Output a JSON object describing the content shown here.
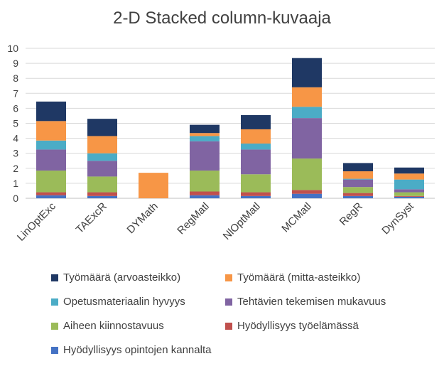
{
  "chart_data": {
    "type": "bar",
    "stacked": true,
    "title": "2-D Stacked column-kuvaaja",
    "xlabel": "",
    "ylabel": "",
    "ylim": [
      0,
      10
    ],
    "yticks": [
      "0",
      "1",
      "2",
      "3",
      "4",
      "5",
      "6",
      "7",
      "8",
      "9",
      "10"
    ],
    "grid": true,
    "legend_position": "bottom",
    "categories": [
      "LinOptExc",
      "TAExcR",
      "DYMath",
      "RegMatl",
      "NlOptMatl",
      "MCMatl",
      "RegR",
      "DynSyst"
    ],
    "series": [
      {
        "name": "Hyödyllisyys opintojen kannalta",
        "color": "#4472C4",
        "values": [
          0.2,
          0.15,
          0.0,
          0.2,
          0.15,
          0.3,
          0.15,
          0.1
        ]
      },
      {
        "name": "Hyödyllisyys työelämässä",
        "color": "#C0504D",
        "values": [
          0.2,
          0.25,
          0.0,
          0.25,
          0.25,
          0.25,
          0.2,
          0.05
        ]
      },
      {
        "name": "Aiheen kiinnostavuus",
        "color": "#9BBB59",
        "values": [
          1.45,
          1.05,
          0.0,
          1.4,
          1.2,
          2.1,
          0.4,
          0.25
        ]
      },
      {
        "name": "Tehtävien tekemisen mukavuus",
        "color": "#8064A2",
        "values": [
          1.4,
          1.05,
          0.0,
          1.95,
          1.65,
          2.7,
          0.5,
          0.2
        ]
      },
      {
        "name": "Opetusmateriaalin hyvyys",
        "color": "#4BACC6",
        "values": [
          0.6,
          0.5,
          0.0,
          0.35,
          0.4,
          0.75,
          0.05,
          0.65
        ]
      },
      {
        "name": "Työmäärä (mitta-asteikko)",
        "color": "#F79646",
        "values": [
          1.3,
          1.15,
          1.7,
          0.2,
          0.95,
          1.3,
          0.5,
          0.4
        ]
      },
      {
        "name": "Työmäärä (arvoasteikko)",
        "color": "#1F3864",
        "values": [
          1.3,
          1.15,
          0.0,
          0.55,
          0.95,
          1.95,
          0.55,
          0.4
        ]
      }
    ]
  },
  "legend": {
    "items": [
      {
        "label": "Työmäärä (arvoasteikko)",
        "color": "#1F3864"
      },
      {
        "label": "Työmäärä (mitta-asteikko)",
        "color": "#F79646"
      },
      {
        "label": "Opetusmateriaalin hyvyys",
        "color": "#4BACC6"
      },
      {
        "label": "Tehtävien tekemisen mukavuus",
        "color": "#8064A2"
      },
      {
        "label": "Aiheen kiinnostavuus",
        "color": "#9BBB59"
      },
      {
        "label": "Hyödyllisyys työelämässä",
        "color": "#C0504D"
      },
      {
        "label": "Hyödyllisyys opintojen kannalta",
        "color": "#4472C4"
      }
    ]
  }
}
